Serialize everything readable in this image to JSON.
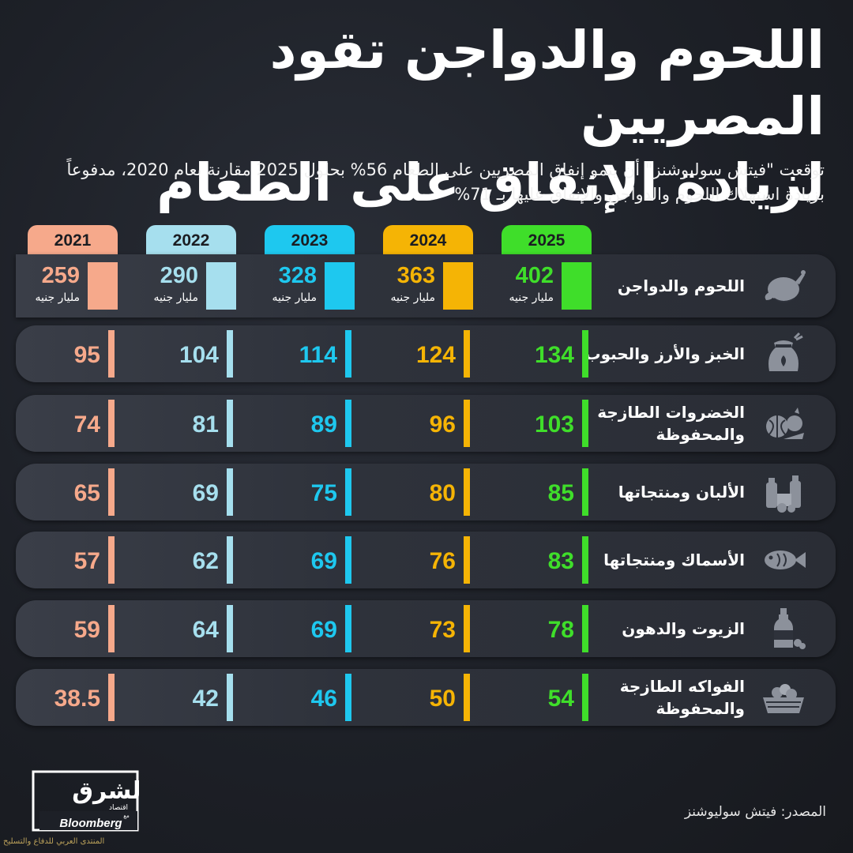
{
  "title_line1": "اللحوم والدواجن تقود المصريين",
  "title_line2": "لزيادة الإنفاق على الطعام",
  "subtitle": "توقعت \"فيتش سوليوشنز\" أن ينمو إنفاق المصريين على الطعام 56% بحلول 2025 مقارنة بعام 2020، مدفوعاً بزيادة استهلاك اللحوم والدواجن والإنفاق عليها بـ 71%",
  "unit_label": "مليار جنيه",
  "source": "المصدر: فيتش سوليوشنز",
  "logo": {
    "name": "الشرق",
    "sub": "اقتصاد",
    "partner": "Bloomberg",
    "with": "مع"
  },
  "watermark": "المنتدى العربي للدفاع والتسليح",
  "colors": {
    "2021": "#f6a98b",
    "2022": "#a6dfee",
    "2023": "#1ec8ef",
    "2024": "#f5b405",
    "2025": "#3fde2a"
  },
  "chart_data": {
    "type": "table",
    "years": [
      "2021",
      "2022",
      "2023",
      "2024",
      "2025"
    ],
    "categories": [
      {
        "name": "اللحوم والدواجن",
        "icon": "poultry-icon",
        "values": [
          259,
          290,
          328,
          363,
          402
        ]
      },
      {
        "name": "الخبز والأرز والحبوب",
        "icon": "grain-sack-icon",
        "values": [
          95,
          104,
          114,
          124,
          134
        ]
      },
      {
        "name": "الخضروات الطازجة والمحفوظة",
        "icon": "vegetables-icon",
        "values": [
          74,
          81,
          89,
          96,
          103
        ]
      },
      {
        "name": "الألبان ومنتجاتها",
        "icon": "dairy-icon",
        "values": [
          65,
          69,
          75,
          80,
          85
        ]
      },
      {
        "name": "الأسماك ومنتجاتها",
        "icon": "fish-icon",
        "values": [
          57,
          62,
          69,
          76,
          83
        ]
      },
      {
        "name": "الزيوت والدهون",
        "icon": "oil-bottle-icon",
        "values": [
          59,
          64,
          69,
          73,
          78
        ]
      },
      {
        "name": "الفواكه الطازجة والمحفوظة",
        "icon": "fruit-basket-icon",
        "values": [
          38.5,
          42,
          46,
          50,
          54
        ]
      }
    ]
  }
}
